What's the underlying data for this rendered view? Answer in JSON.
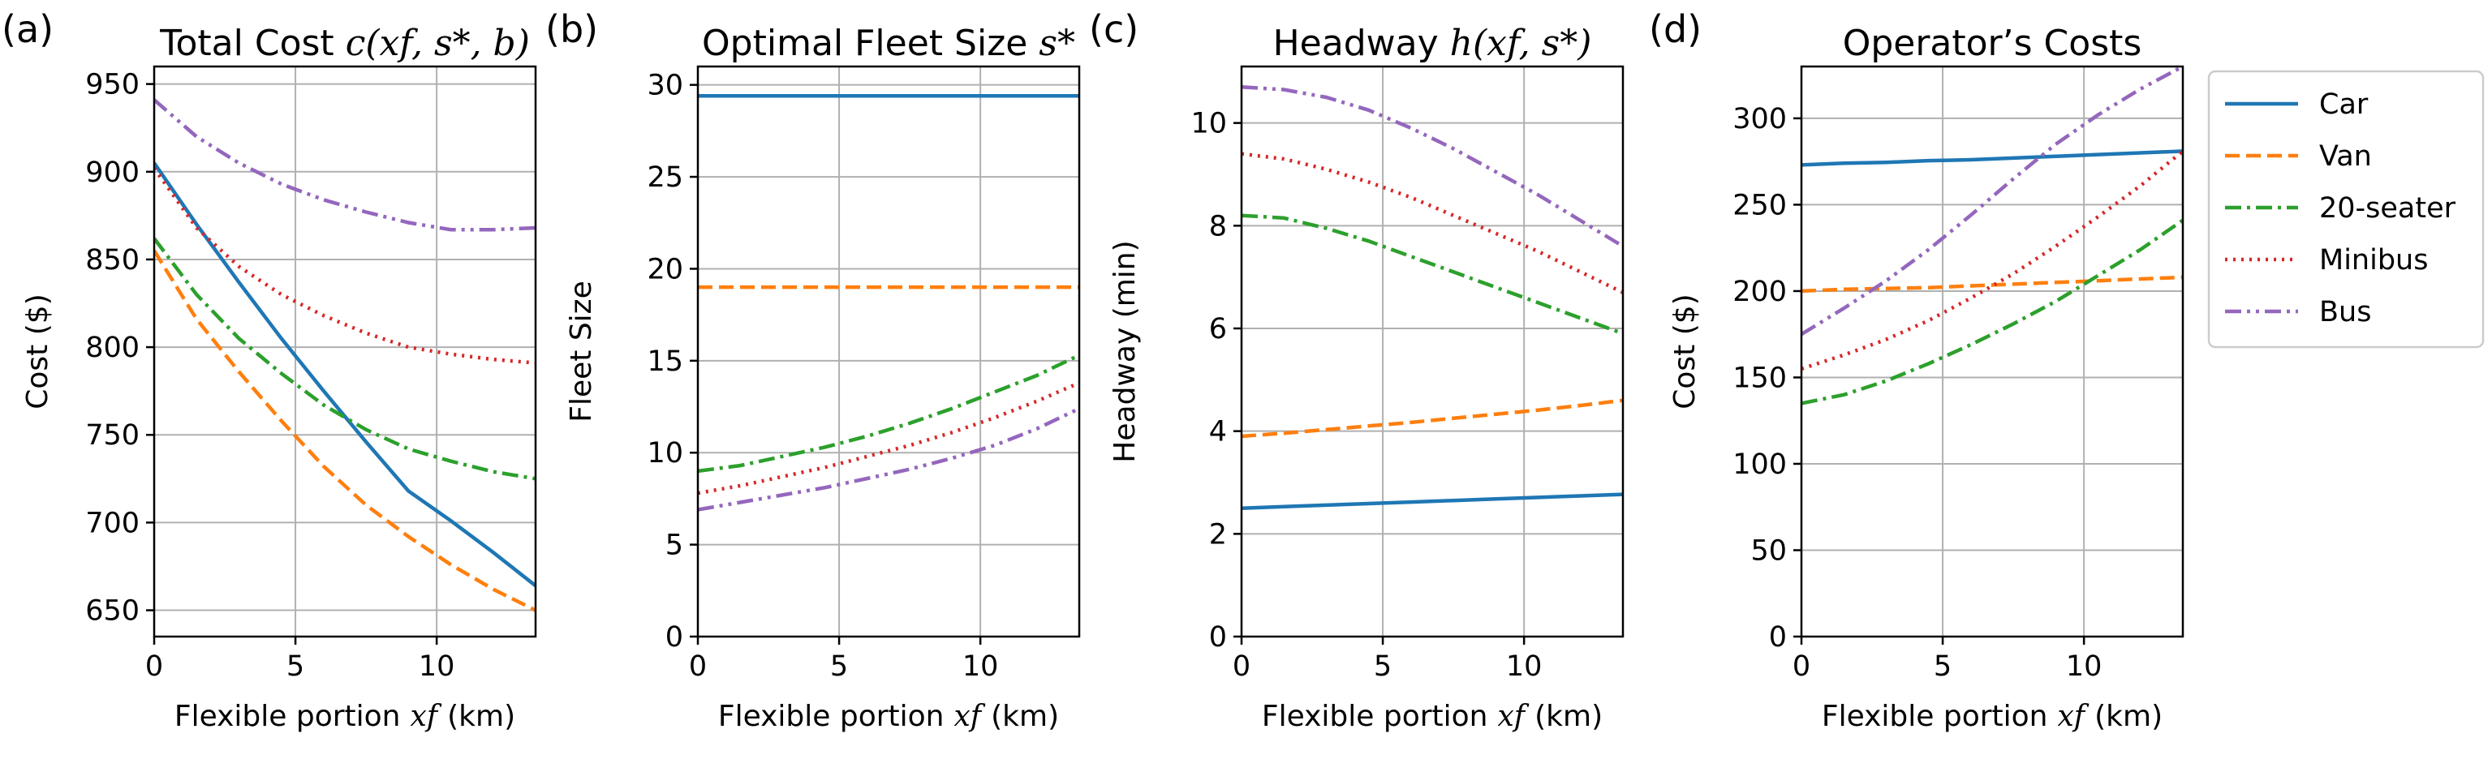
{
  "colors": {
    "car": "#1f77b4",
    "van": "#ff7f0e",
    "seater20": "#2ca02c",
    "minibus": "#d62728",
    "bus": "#9467bd"
  },
  "legend": {
    "entries": [
      "Car",
      "Van",
      "20-seater",
      "Minibus",
      "Bus"
    ]
  },
  "chart_data": [
    {
      "type": "line",
      "panel_label": "(a)",
      "title": "Total Cost c(x_f, s*, b)",
      "title_text": "Total Cost",
      "title_math": "c(xf, s*, b)",
      "xlabel": "Flexible portion x_f (km)",
      "xlabel_prefix": "Flexible portion",
      "xlabel_math": "xf",
      "xlabel_suffix": "(km)",
      "ylabel": "Cost ($)",
      "xlim": [
        0,
        13.5
      ],
      "ylim": [
        635,
        960
      ],
      "xticks": [
        0,
        5,
        10
      ],
      "yticks": [
        650,
        700,
        750,
        800,
        850,
        900,
        950
      ],
      "grid": true,
      "x": [
        0,
        1.5,
        3,
        4.5,
        6,
        7.5,
        9,
        10.5,
        12,
        13.5
      ],
      "series": [
        {
          "name": "Car",
          "style": "solid",
          "values": [
            905,
            870,
            837,
            805,
            775,
            746,
            718,
            701,
            683,
            664
          ]
        },
        {
          "name": "Van",
          "style": "dashed",
          "values": [
            855,
            816,
            786,
            758,
            732,
            710,
            692,
            676,
            662,
            650
          ]
        },
        {
          "name": "20-seater",
          "style": "dashdot",
          "values": [
            862,
            830,
            805,
            785,
            767,
            753,
            742,
            735,
            729,
            725
          ]
        },
        {
          "name": "Minibus",
          "style": "dotted",
          "values": [
            902,
            868,
            846,
            830,
            818,
            808,
            800,
            796,
            793,
            791
          ]
        },
        {
          "name": "Bus",
          "style": "dashdotdot",
          "values": [
            941,
            920,
            905,
            893,
            884,
            877,
            871,
            867,
            867,
            868
          ]
        }
      ]
    },
    {
      "type": "line",
      "panel_label": "(b)",
      "title": "Optimal Fleet Size s*",
      "title_text": "Optimal Fleet Size",
      "title_math": "s*",
      "xlabel": "Flexible portion x_f (km)",
      "xlabel_prefix": "Flexible portion",
      "xlabel_math": "xf",
      "xlabel_suffix": "(km)",
      "ylabel": "Fleet Size",
      "xlim": [
        0,
        13.5
      ],
      "ylim": [
        0,
        31
      ],
      "xticks": [
        0,
        5,
        10
      ],
      "yticks": [
        0,
        5,
        10,
        15,
        20,
        25,
        30
      ],
      "grid": true,
      "x": [
        0,
        1.5,
        3,
        4.5,
        6,
        7.5,
        9,
        10.5,
        12,
        13.5
      ],
      "series": [
        {
          "name": "Car",
          "style": "solid",
          "values": [
            29.4,
            29.4,
            29.4,
            29.4,
            29.4,
            29.4,
            29.4,
            29.4,
            29.4,
            29.4
          ]
        },
        {
          "name": "Van",
          "style": "dashed",
          "values": [
            19,
            19,
            19,
            19,
            19,
            19,
            19,
            19,
            19,
            19
          ]
        },
        {
          "name": "20-seater",
          "style": "dashdot",
          "values": [
            9.0,
            9.3,
            9.8,
            10.3,
            10.9,
            11.6,
            12.4,
            13.3,
            14.2,
            15.3
          ]
        },
        {
          "name": "Minibus",
          "style": "dotted",
          "values": [
            7.8,
            8.2,
            8.7,
            9.2,
            9.8,
            10.4,
            11.1,
            11.9,
            12.8,
            13.8
          ]
        },
        {
          "name": "Bus",
          "style": "dashdotdot",
          "values": [
            6.9,
            7.3,
            7.7,
            8.1,
            8.6,
            9.1,
            9.7,
            10.4,
            11.3,
            12.4
          ]
        }
      ]
    },
    {
      "type": "line",
      "panel_label": "(c)",
      "title": "Headway h(x_f, s*)",
      "title_text": "Headway",
      "title_math": "h(xf, s*)",
      "xlabel": "Flexible portion x_f (km)",
      "xlabel_prefix": "Flexible portion",
      "xlabel_math": "xf",
      "xlabel_suffix": "(km)",
      "ylabel": "Headway (min)",
      "xlim": [
        0,
        13.5
      ],
      "ylim": [
        0,
        11.1
      ],
      "xticks": [
        0,
        5,
        10
      ],
      "yticks": [
        0,
        2,
        4,
        6,
        8,
        10
      ],
      "grid": true,
      "x": [
        0,
        1.5,
        3,
        4.5,
        6,
        7.5,
        9,
        10.5,
        12,
        13.5
      ],
      "series": [
        {
          "name": "Car",
          "style": "solid",
          "values": [
            2.5,
            2.53,
            2.56,
            2.59,
            2.62,
            2.65,
            2.68,
            2.71,
            2.74,
            2.77
          ]
        },
        {
          "name": "Van",
          "style": "dashed",
          "values": [
            3.9,
            3.96,
            4.03,
            4.1,
            4.17,
            4.25,
            4.33,
            4.41,
            4.5,
            4.6
          ]
        },
        {
          "name": "20-seater",
          "style": "dashdot",
          "values": [
            8.2,
            8.15,
            7.95,
            7.7,
            7.4,
            7.1,
            6.8,
            6.5,
            6.2,
            5.9
          ]
        },
        {
          "name": "Minibus",
          "style": "dotted",
          "values": [
            9.4,
            9.3,
            9.1,
            8.85,
            8.55,
            8.2,
            7.85,
            7.5,
            7.1,
            6.7
          ]
        },
        {
          "name": "Bus",
          "style": "dashdotdot",
          "values": [
            10.7,
            10.65,
            10.5,
            10.25,
            9.9,
            9.5,
            9.05,
            8.6,
            8.1,
            7.6
          ]
        }
      ]
    },
    {
      "type": "line",
      "panel_label": "(d)",
      "title": "Operator's Costs",
      "title_text": "Operator’s Costs",
      "title_math": "",
      "xlabel": "Flexible portion x_f (km)",
      "xlabel_prefix": "Flexible portion",
      "xlabel_math": "xf",
      "xlabel_suffix": "(km)",
      "ylabel": "Cost ($)",
      "xlim": [
        0,
        13.5
      ],
      "ylim": [
        0,
        330
      ],
      "xticks": [
        0,
        5,
        10
      ],
      "yticks": [
        0,
        50,
        100,
        150,
        200,
        250,
        300
      ],
      "grid": true,
      "x": [
        0,
        1.5,
        3,
        4.5,
        6,
        7.5,
        9,
        10.5,
        12,
        13.5
      ],
      "series": [
        {
          "name": "Car",
          "style": "solid",
          "values": [
            273,
            274,
            274.5,
            275.5,
            276,
            277,
            278,
            279,
            280,
            281
          ]
        },
        {
          "name": "Van",
          "style": "dashed",
          "values": [
            200,
            201,
            201.5,
            202,
            203,
            204,
            205,
            206,
            207,
            208
          ]
        },
        {
          "name": "20-seater",
          "style": "dashdot",
          "values": [
            135,
            140,
            148,
            158,
            169,
            181,
            194,
            209,
            224,
            241
          ]
        },
        {
          "name": "Minibus",
          "style": "dotted",
          "values": [
            155,
            163,
            172,
            183,
            196,
            210,
            226,
            243,
            261,
            281
          ]
        },
        {
          "name": "Bus",
          "style": "dashdotdot",
          "values": [
            175,
            190,
            206,
            224,
            244,
            265,
            285,
            302,
            317,
            330
          ]
        }
      ]
    }
  ]
}
